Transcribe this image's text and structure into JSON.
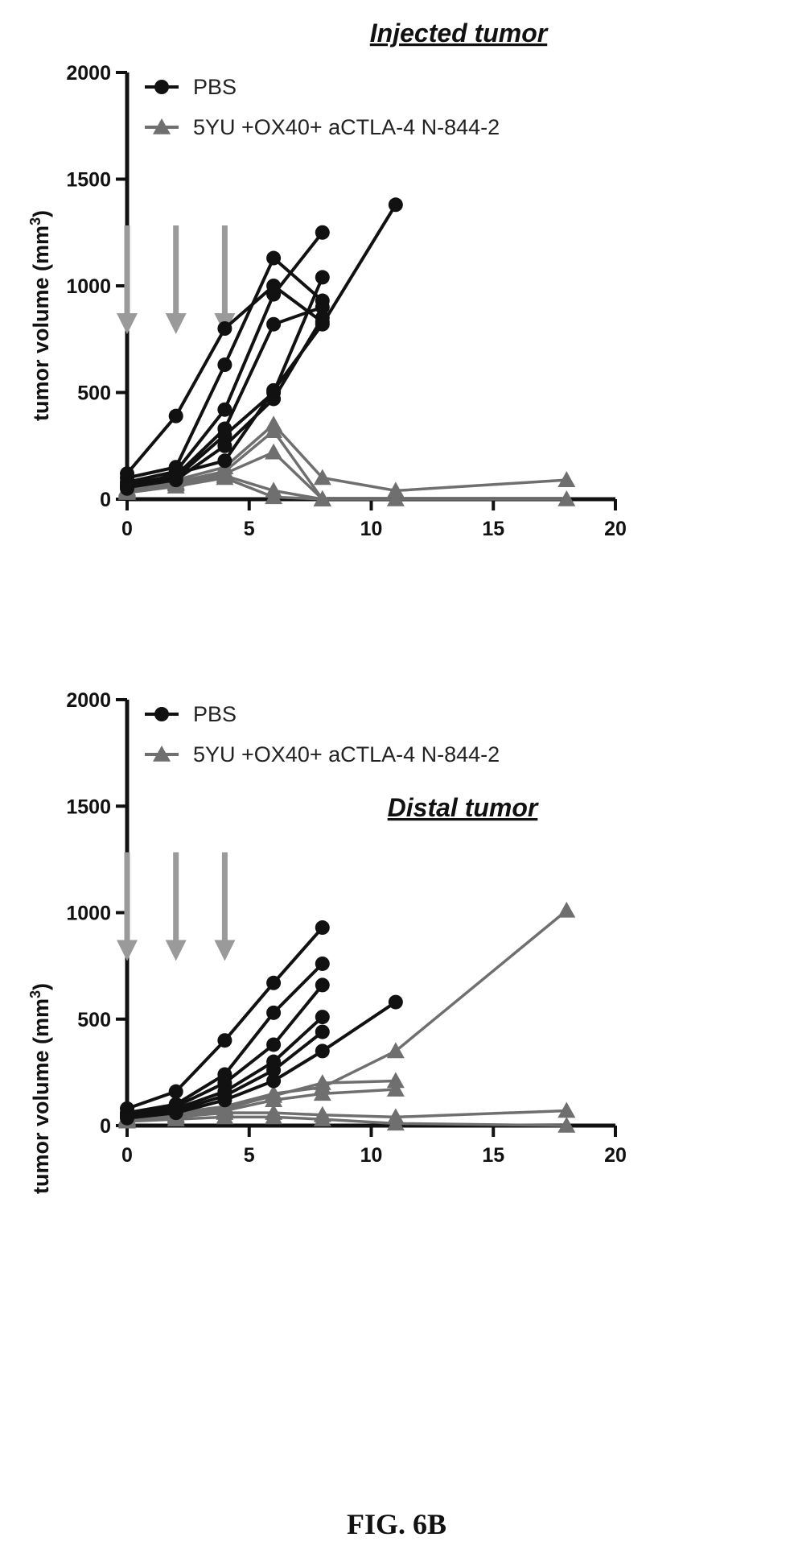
{
  "caption": "FIG. 6B",
  "colors": {
    "pbs": "#111111",
    "treated": "#6f6f6f",
    "arrow": "#9a9a9a"
  },
  "chart_data": [
    {
      "type": "line",
      "title": "Injected tumor",
      "ylabel": "tumor volume (mm",
      "ylabel_sup": "3",
      "ylabel_close": ")",
      "xlim": [
        0,
        20
      ],
      "ylim": [
        0,
        2000
      ],
      "xticks": [
        0,
        5,
        10,
        15,
        20
      ],
      "yticks": [
        0,
        500,
        1000,
        1500,
        2000
      ],
      "arrows_at_x": [
        0,
        2,
        4
      ],
      "legend": [
        {
          "label": "PBS",
          "marker": "circle",
          "group": "pbs"
        },
        {
          "label": "5YU +OX40+ aCTLA-4 N-844-2",
          "marker": "triangle",
          "group": "treated"
        }
      ],
      "series": [
        {
          "group": "pbs",
          "x": [
            0,
            2,
            4,
            6,
            8
          ],
          "y": [
            120,
            390,
            800,
            1000,
            830
          ]
        },
        {
          "group": "pbs",
          "x": [
            0,
            2,
            4,
            6,
            8
          ],
          "y": [
            100,
            150,
            630,
            1130,
            930
          ]
        },
        {
          "group": "pbs",
          "x": [
            0,
            2,
            4,
            6,
            8
          ],
          "y": [
            80,
            130,
            420,
            960,
            1250
          ]
        },
        {
          "group": "pbs",
          "x": [
            0,
            2,
            4,
            6,
            8
          ],
          "y": [
            70,
            110,
            330,
            820,
            900
          ]
        },
        {
          "group": "pbs",
          "x": [
            0,
            2,
            4,
            6,
            8
          ],
          "y": [
            60,
            100,
            300,
            500,
            1040
          ]
        },
        {
          "group": "pbs",
          "x": [
            0,
            2,
            4,
            6,
            8
          ],
          "y": [
            55,
            90,
            250,
            470,
            850
          ]
        },
        {
          "group": "pbs",
          "x": [
            0,
            2,
            4,
            6,
            8,
            11
          ],
          "y": [
            50,
            120,
            180,
            510,
            820,
            1380
          ]
        },
        {
          "group": "treated",
          "x": [
            0,
            2,
            4,
            6,
            8,
            11,
            18
          ],
          "y": [
            50,
            90,
            150,
            350,
            100,
            40,
            90
          ]
        },
        {
          "group": "treated",
          "x": [
            0,
            2,
            4,
            6,
            8
          ],
          "y": [
            45,
            80,
            130,
            320,
            0
          ]
        },
        {
          "group": "treated",
          "x": [
            0,
            2,
            4,
            6,
            8,
            11,
            18
          ],
          "y": [
            40,
            75,
            120,
            220,
            0,
            0,
            0
          ]
        },
        {
          "group": "treated",
          "x": [
            0,
            2,
            4,
            6,
            8
          ],
          "y": [
            35,
            70,
            110,
            40,
            0
          ]
        },
        {
          "group": "treated",
          "x": [
            0,
            2,
            4,
            6,
            8
          ],
          "y": [
            30,
            60,
            100,
            10,
            0
          ]
        }
      ]
    },
    {
      "type": "line",
      "title": "Distal tumor",
      "ylabel": "tumor volume (mm",
      "ylabel_sup": "3",
      "ylabel_close": ")",
      "xlim": [
        0,
        20
      ],
      "ylim": [
        0,
        2000
      ],
      "xticks": [
        0,
        5,
        10,
        15,
        20
      ],
      "yticks": [
        0,
        500,
        1000,
        1500,
        2000
      ],
      "arrows_at_x": [
        0,
        2,
        4
      ],
      "legend": [
        {
          "label": "PBS",
          "marker": "circle",
          "group": "pbs"
        },
        {
          "label": "5YU +OX40+ aCTLA-4 N-844-2",
          "marker": "triangle",
          "group": "treated"
        }
      ],
      "series": [
        {
          "group": "pbs",
          "x": [
            0,
            2,
            4,
            6,
            8
          ],
          "y": [
            80,
            160,
            400,
            670,
            930
          ]
        },
        {
          "group": "pbs",
          "x": [
            0,
            2,
            4,
            6,
            8
          ],
          "y": [
            60,
            100,
            240,
            530,
            760
          ]
        },
        {
          "group": "pbs",
          "x": [
            0,
            2,
            4,
            6,
            8
          ],
          "y": [
            50,
            90,
            200,
            380,
            660
          ]
        },
        {
          "group": "pbs",
          "x": [
            0,
            2,
            4,
            6,
            8
          ],
          "y": [
            45,
            80,
            160,
            300,
            510
          ]
        },
        {
          "group": "pbs",
          "x": [
            0,
            2,
            4,
            6,
            8
          ],
          "y": [
            40,
            70,
            140,
            260,
            440
          ]
        },
        {
          "group": "pbs",
          "x": [
            0,
            2,
            4,
            6,
            8,
            11
          ],
          "y": [
            35,
            60,
            120,
            210,
            350,
            580
          ]
        },
        {
          "group": "treated",
          "x": [
            0,
            2,
            4,
            6,
            8,
            11,
            18
          ],
          "y": [
            40,
            60,
            90,
            150,
            180,
            350,
            1010
          ]
        },
        {
          "group": "treated",
          "x": [
            0,
            2,
            4,
            6,
            8,
            11
          ],
          "y": [
            35,
            50,
            80,
            140,
            200,
            210
          ]
        },
        {
          "group": "treated",
          "x": [
            0,
            2,
            4,
            6,
            8,
            11
          ],
          "y": [
            30,
            45,
            70,
            120,
            150,
            170
          ]
        },
        {
          "group": "treated",
          "x": [
            0,
            2,
            4,
            6,
            8,
            11,
            18
          ],
          "y": [
            25,
            40,
            60,
            60,
            50,
            40,
            70
          ]
        },
        {
          "group": "treated",
          "x": [
            0,
            2,
            4,
            6,
            8,
            11,
            18
          ],
          "y": [
            20,
            30,
            40,
            40,
            30,
            10,
            0
          ]
        }
      ]
    }
  ]
}
